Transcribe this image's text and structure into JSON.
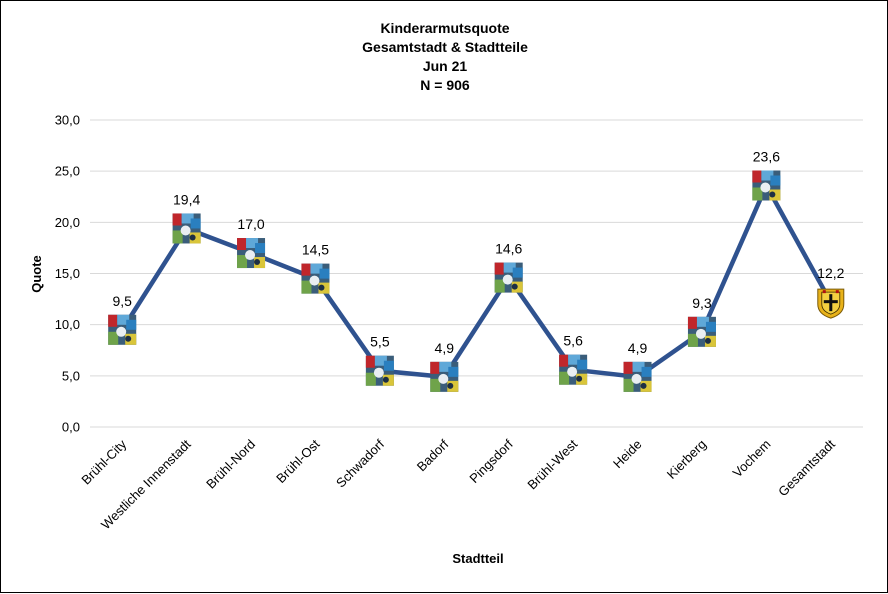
{
  "chart_data": {
    "type": "line",
    "title": [
      "Kinderarmutsquote",
      "Gesamtstadt & Stadtteile",
      "Jun 21",
      "N = 906"
    ],
    "xlabel": "Stadtteil",
    "ylabel": "Quote",
    "ylim": [
      0,
      30
    ],
    "ytick_step": 5,
    "ytick_labels": [
      "0,0",
      "5,0",
      "10,0",
      "15,0",
      "20,0",
      "25,0",
      "30,0"
    ],
    "grid": true,
    "legend": "none",
    "categories": [
      "Brühl-City",
      "Westliche Innenstadt",
      "Brühl-Nord",
      "Brühl-Ost",
      "Schwadorf",
      "Badorf",
      "Pingsdorf",
      "Brühl-West",
      "Heide",
      "Kierberg",
      "Vochem",
      "Gesamtstadt"
    ],
    "series": [
      {
        "values": [
          9.5,
          19.4,
          17.0,
          14.5,
          5.5,
          4.9,
          14.6,
          5.6,
          4.9,
          9.3,
          23.6,
          12.2
        ],
        "data_labels": [
          "9,5",
          "19,4",
          "17,0",
          "14,5",
          "5,5",
          "4,9",
          "14,6",
          "5,6",
          "4,9",
          "9,3",
          "23,6",
          "12,2"
        ],
        "color": "#2f528f",
        "markers": [
          "district-photo",
          "district-photo",
          "district-photo",
          "district-photo",
          "district-photo",
          "district-photo",
          "district-photo",
          "district-photo",
          "district-photo",
          "district-photo",
          "district-photo",
          "city-coat-of-arms"
        ]
      }
    ]
  }
}
